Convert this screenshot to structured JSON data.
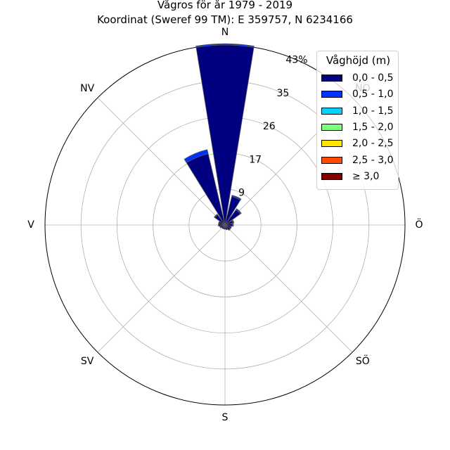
{
  "title": {
    "line1": "Vågros för år 1979 - 2019",
    "line2": "Koordinat (Sweref 99 TM): E 359757, N 6234166"
  },
  "chart_data": {
    "type": "polar-bar",
    "direction_labels": [
      "N",
      "NO",
      "Ö",
      "SÖ",
      "S",
      "SV",
      "V",
      "NV"
    ],
    "radial_ticks": [
      "9",
      "17",
      "26",
      "35",
      "43%"
    ],
    "radial_tick_values": [
      8.6,
      17.2,
      25.8,
      34.4,
      43
    ],
    "r_max": 43,
    "sectors": 16,
    "sector_directions": [
      "N",
      "NNO",
      "NO",
      "ONO",
      "Ö",
      "OSÖ",
      "SÖ",
      "SSÖ",
      "S",
      "SSV",
      "SV",
      "VSV",
      "V",
      "VNV",
      "NV",
      "NNV"
    ],
    "series": [
      {
        "name": "0,0 - 0,5",
        "color": "#000080",
        "values": [
          43.0,
          7.0,
          4.5,
          2.0,
          1.8,
          1.5,
          1.5,
          1.2,
          1.0,
          1.0,
          1.0,
          1.2,
          1.5,
          1.5,
          3.0,
          17.5
        ]
      },
      {
        "name": "0,5 - 1,0",
        "color": "#0033ff",
        "values": [
          0.3,
          0.3,
          0.3,
          0.2,
          0.2,
          0.1,
          0.1,
          0.0,
          0.0,
          0.0,
          0.0,
          0.1,
          0.1,
          0.1,
          0.2,
          1.0
        ]
      },
      {
        "name": "1,0 - 1,5",
        "color": "#00d4ff",
        "values": [
          0,
          0,
          0,
          0,
          0,
          0,
          0,
          0,
          0,
          0,
          0,
          0,
          0,
          0,
          0,
          0
        ]
      },
      {
        "name": "1,5 - 2,0",
        "color": "#7fff7f",
        "values": [
          0,
          0,
          0,
          0,
          0,
          0,
          0,
          0,
          0,
          0,
          0,
          0,
          0,
          0,
          0,
          0
        ]
      },
      {
        "name": "2,0 - 2,5",
        "color": "#ffe500",
        "values": [
          0,
          0,
          0,
          0,
          0,
          0,
          0,
          0,
          0,
          0,
          0,
          0,
          0,
          0,
          0,
          0
        ]
      },
      {
        "name": "2,5 - 3,0",
        "color": "#ff4a00",
        "values": [
          0,
          0,
          0,
          0,
          0,
          0,
          0,
          0,
          0,
          0,
          0,
          0,
          0,
          0,
          0,
          0
        ]
      },
      {
        "name": "≥ 3,0",
        "color": "#7f0000",
        "values": [
          0,
          0,
          0,
          0,
          0,
          0,
          0,
          0,
          0,
          0,
          0,
          0,
          0,
          0,
          0,
          0
        ]
      }
    ],
    "legend_title": "Våghöjd (m)",
    "legend_position": "top-right",
    "grid": true
  }
}
